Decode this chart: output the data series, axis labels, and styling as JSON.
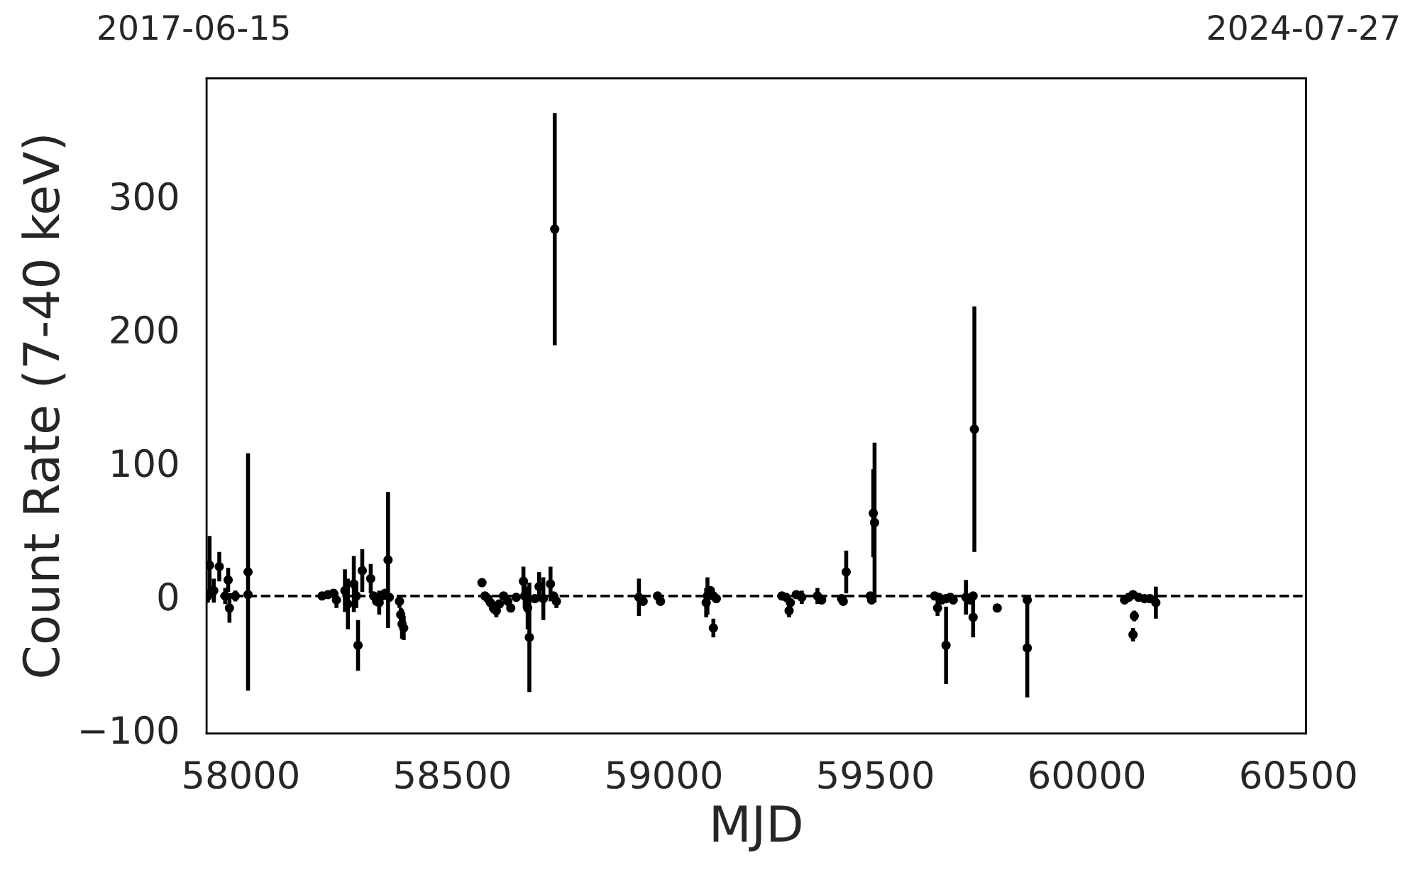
{
  "chart_data": {
    "type": "scatter",
    "xlabel": "MJD",
    "ylabel": "Count Rate (7-40 keV)",
    "xlim": [
      57919,
      60518
    ],
    "xticks": [
      58000,
      58500,
      59000,
      59500,
      60000,
      60500
    ],
    "ylim": [
      -103,
      388
    ],
    "yticks": [
      {
        "value": -100,
        "label": "−100"
      },
      0,
      100,
      200,
      300
    ],
    "annotations": [
      "2017-06-15",
      "2024-07-27"
    ],
    "marker": "circle",
    "grid": false,
    "legend": false,
    "ref_lines": [
      {
        "axis": "y",
        "value": 0,
        "color": "#000000",
        "line_style": "dashed"
      }
    ],
    "series": [
      {
        "color": "#000000",
        "x": [
          57922,
          57926,
          57936,
          57949,
          57963,
          57970,
          57973,
          57987,
          58017,
          58017,
          58192,
          58206,
          58219,
          58226,
          58246,
          58253,
          58267,
          58273,
          58277,
          58287,
          58307,
          58314,
          58321,
          58327,
          58334,
          58341,
          58348,
          58351,
          58375,
          58378,
          58381,
          58385,
          58570,
          58577,
          58584,
          58590,
          58597,
          58604,
          58611,
          58621,
          58631,
          58638,
          58651,
          58668,
          58671,
          58678,
          58682,
          58695,
          58705,
          58715,
          58732,
          58739,
          58742,
          58746,
          58941,
          58951,
          58985,
          58992,
          59100,
          59103,
          59110,
          59117,
          59117,
          59124,
          59279,
          59289,
          59296,
          59299,
          59313,
          59326,
          59363,
          59373,
          59420,
          59424,
          59431,
          59488,
          59491,
          59495,
          59498,
          59640,
          59647,
          59650,
          59657,
          59667,
          59667,
          59677,
          59684,
          59714,
          59724,
          59731,
          59731,
          59734,
          59788,
          59859,
          59859,
          60089,
          60099,
          60109,
          60109,
          60112,
          60122,
          60136,
          60149,
          60163
        ],
        "values": [
          0,
          23,
          4,
          22,
          0,
          12,
          -9,
          0,
          18,
          1,
          0,
          1,
          2,
          -3,
          4,
          -6,
          9,
          0,
          -37,
          19,
          13,
          0,
          -4,
          -5,
          0,
          2,
          27,
          -1,
          -4,
          -14,
          -21,
          -24,
          10,
          0,
          -2,
          -5,
          -9,
          -11,
          -6,
          0,
          -4,
          -9,
          -1,
          11,
          0,
          -9,
          -31,
          -2,
          7,
          -2,
          9,
          0,
          275,
          -4,
          -1,
          -4,
          0,
          -4,
          -5,
          0,
          4,
          0,
          -24,
          -2,
          0,
          -1,
          -11,
          -5,
          1,
          -1,
          0,
          -3,
          -2,
          -4,
          18,
          0,
          -3,
          62,
          55,
          0,
          -9,
          -1,
          -3,
          -2,
          -37,
          -1,
          -3,
          -1,
          -3,
          0,
          -16,
          125,
          -9,
          -3,
          -39,
          -3,
          -1,
          1,
          -29,
          -15,
          -1,
          -2,
          -2,
          -5
        ],
        "errors": [
          5,
          22,
          9,
          11,
          6,
          9,
          11,
          4,
          89,
          3,
          3,
          3,
          3,
          6,
          16,
          19,
          21,
          9,
          19,
          16,
          11,
          3,
          3,
          9,
          3,
          3,
          51,
          3,
          5,
          5,
          11,
          9,
          3,
          3,
          3,
          3,
          4,
          5,
          3,
          3,
          3,
          3,
          3,
          11,
          9,
          16,
          41,
          3,
          11,
          16,
          13,
          3,
          87,
          5,
          14,
          3,
          3,
          3,
          11,
          14,
          3,
          3,
          7,
          3,
          3,
          3,
          5,
          3,
          3,
          5,
          6,
          3,
          3,
          3,
          16,
          3,
          3,
          33,
          60,
          3,
          6,
          3,
          3,
          3,
          29,
          3,
          3,
          13,
          3,
          3,
          15,
          92,
          3,
          4,
          37,
          3,
          3,
          3,
          5,
          4,
          3,
          3,
          3,
          12
        ]
      }
    ]
  }
}
